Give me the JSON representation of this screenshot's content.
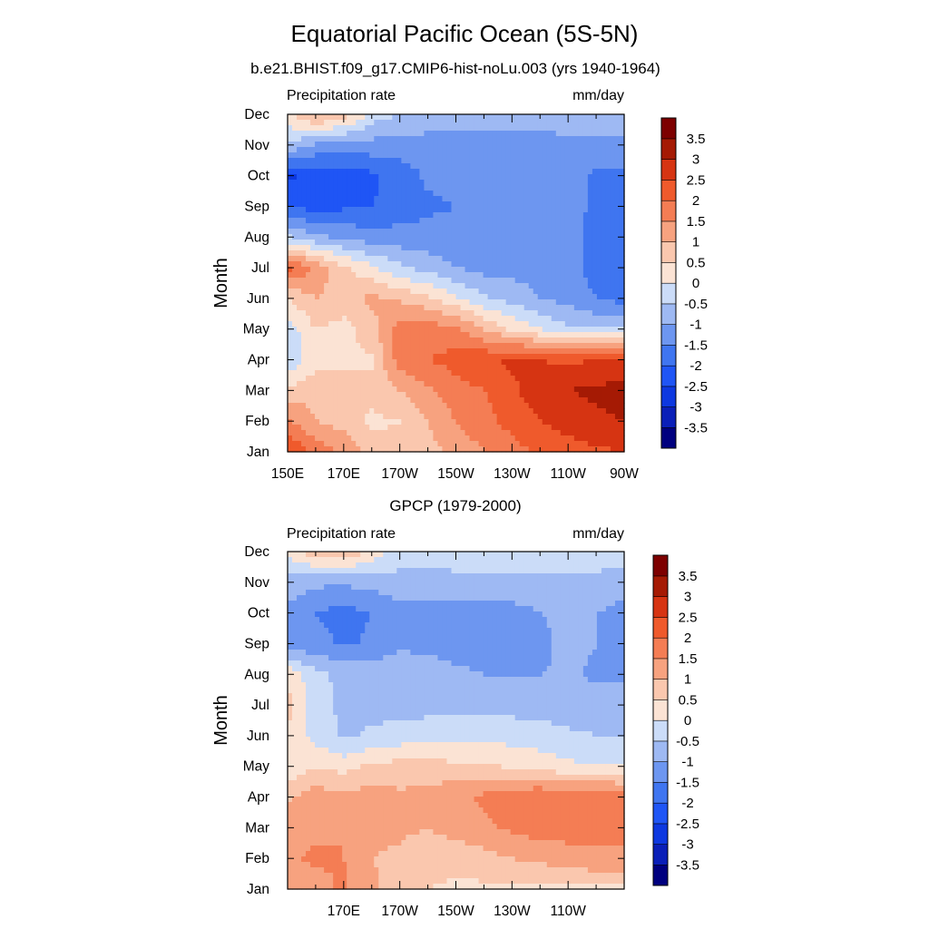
{
  "title": "Equatorial Pacific Ocean (5S-5N)",
  "colorbar": {
    "levels": [
      -3.5,
      -3,
      -2.5,
      -2,
      -1.5,
      -1,
      -0.5,
      0,
      0.5,
      1,
      1.5,
      2,
      2.5,
      3,
      3.5
    ],
    "labels": [
      "-3.5",
      "-3",
      "-2.5",
      "-2",
      "-1.5",
      "-1",
      "-0.5",
      "0",
      "0.5",
      "1",
      "1.5",
      "2",
      "2.5",
      "3",
      "3.5"
    ],
    "colors": [
      "#00007f",
      "#0a1fb8",
      "#0d38e0",
      "#1f55f5",
      "#3f75f0",
      "#6d96f0",
      "#9eb9f3",
      "#cbdcf8",
      "#fbe3d4",
      "#fac7ae",
      "#f7a27f",
      "#f47d54",
      "#ef5a2c",
      "#d63412",
      "#a51a04",
      "#7d0000"
    ]
  },
  "chart_data": [
    {
      "type": "heatmap",
      "title": "b.e21.BHIST.f09_g17.CMIP6-hist-noLu.003 (yrs 1940-1964)",
      "left_label": "Precipitation rate",
      "right_label": "mm/day",
      "ylabel": "Month",
      "xlabel": "",
      "x_ticks": [
        "150E",
        "170E",
        "170W",
        "150W",
        "130W",
        "110W",
        "90W"
      ],
      "y_ticks": [
        "Jan",
        "Feb",
        "Mar",
        "Apr",
        "May",
        "Jun",
        "Jul",
        "Aug",
        "Sep",
        "Oct",
        "Nov",
        "Dec"
      ],
      "x": [
        150,
        160,
        170,
        180,
        190,
        200,
        210,
        220,
        230,
        240,
        250,
        260,
        270
      ],
      "y": [
        "Jan",
        "Feb",
        "Mar",
        "Apr",
        "May",
        "Jun",
        "Jul",
        "Aug",
        "Sep",
        "Oct",
        "Nov",
        "Dec"
      ],
      "z": [
        [
          2.6,
          1.8,
          1.4,
          0.8,
          0.6,
          0.8,
          1.2,
          1.5,
          1.8,
          2.1,
          2.3,
          2.4,
          2.5
        ],
        [
          1.6,
          1.0,
          0.8,
          0.4,
          0.5,
          1.0,
          1.5,
          1.8,
          2.2,
          2.5,
          2.7,
          2.9,
          3.0
        ],
        [
          0.6,
          0.9,
          0.5,
          0.7,
          1.0,
          1.4,
          1.8,
          2.0,
          2.4,
          2.8,
          3.0,
          3.1,
          3.2
        ],
        [
          -0.4,
          0.3,
          0.5,
          0.4,
          1.8,
          2.0,
          2.2,
          2.4,
          2.6,
          2.5,
          2.4,
          2.5,
          2.6
        ],
        [
          -0.3,
          0.5,
          0.3,
          0.8,
          1.8,
          1.8,
          1.6,
          1.0,
          0.4,
          0.0,
          -0.4,
          -0.5,
          -0.5
        ],
        [
          0.5,
          1.0,
          0.8,
          1.1,
          0.9,
          0.6,
          0.1,
          -0.4,
          -0.7,
          -1.0,
          -1.2,
          -1.5,
          -1.7
        ],
        [
          2.2,
          1.4,
          0.6,
          0.1,
          -0.4,
          -0.7,
          -1.0,
          -1.2,
          -1.2,
          -1.2,
          -1.3,
          -1.7,
          -1.9
        ],
        [
          -0.4,
          -0.9,
          -1.1,
          -1.3,
          -1.3,
          -1.3,
          -1.3,
          -1.3,
          -1.2,
          -1.2,
          -1.3,
          -1.7,
          -1.8
        ],
        [
          -2.0,
          -2.2,
          -2.1,
          -2.0,
          -1.8,
          -1.6,
          -1.5,
          -1.3,
          -1.2,
          -1.2,
          -1.3,
          -1.6,
          -1.7
        ],
        [
          -2.6,
          -2.3,
          -2.3,
          -2.1,
          -1.8,
          -1.4,
          -1.3,
          -1.2,
          -1.2,
          -1.4,
          -1.2,
          -1.6,
          -1.6
        ],
        [
          -0.6,
          -1.1,
          -1.2,
          -1.2,
          -1.2,
          -1.2,
          -1.2,
          -1.2,
          -1.2,
          -1.2,
          -1.2,
          -1.2,
          -1.2
        ],
        [
          0.4,
          1.2,
          0.8,
          -0.2,
          -0.5,
          -0.7,
          -0.8,
          -0.8,
          -0.8,
          -0.8,
          -0.6,
          -0.6,
          -0.5
        ]
      ]
    },
    {
      "type": "heatmap",
      "title": "GPCP (1979-2000)",
      "left_label": "Precipitation rate",
      "right_label": "mm/day",
      "ylabel": "Month",
      "xlabel": "",
      "x_ticks": [
        "170E",
        "170W",
        "150W",
        "130W",
        "110W"
      ],
      "y_ticks": [
        "Jan",
        "Feb",
        "Mar",
        "Apr",
        "May",
        "Jun",
        "Jul",
        "Aug",
        "Sep",
        "Oct",
        "Nov",
        "Dec"
      ],
      "x": [
        150,
        160,
        170,
        180,
        190,
        200,
        210,
        220,
        230,
        240,
        250,
        260,
        270
      ],
      "y": [
        "Jan",
        "Feb",
        "Mar",
        "Apr",
        "May",
        "Jun",
        "Jul",
        "Aug",
        "Sep",
        "Oct",
        "Nov",
        "Dec"
      ],
      "z": [
        [
          1.2,
          1.3,
          1.6,
          1.1,
          0.7,
          0.5,
          0.4,
          0.4,
          0.4,
          0.4,
          0.4,
          0.4,
          0.4
        ],
        [
          1.4,
          1.6,
          1.5,
          1.0,
          0.9,
          0.7,
          0.7,
          0.8,
          1.0,
          1.1,
          1.3,
          1.4,
          1.5
        ],
        [
          1.3,
          1.4,
          1.5,
          1.1,
          1.1,
          1.0,
          1.2,
          1.4,
          1.6,
          1.8,
          1.7,
          1.7,
          1.5
        ],
        [
          0.9,
          1.3,
          1.1,
          1.3,
          1.1,
          1.2,
          1.4,
          1.6,
          1.8,
          2.0,
          1.8,
          2.0,
          1.8
        ],
        [
          0.1,
          0.5,
          0.3,
          0.6,
          0.7,
          0.7,
          0.6,
          0.6,
          0.4,
          0.3,
          0.1,
          0.0,
          0.0
        ],
        [
          0.4,
          -0.2,
          -0.6,
          -0.4,
          -0.3,
          -0.2,
          -0.1,
          -0.1,
          -0.2,
          -0.3,
          -0.4,
          -0.5,
          -0.5
        ],
        [
          0.7,
          -0.3,
          -0.6,
          -0.7,
          -0.7,
          -0.7,
          -0.7,
          -0.7,
          -0.7,
          -0.7,
          -0.8,
          -0.8,
          -0.8
        ],
        [
          0.4,
          -0.4,
          -0.6,
          -0.7,
          -0.7,
          -0.8,
          -0.9,
          -1.0,
          -1.0,
          -1.0,
          -0.9,
          -1.1,
          -1.1
        ],
        [
          -1.4,
          -1.3,
          -1.6,
          -1.4,
          -1.1,
          -1.1,
          -1.2,
          -1.2,
          -1.2,
          -1.2,
          -0.8,
          -1.0,
          -1.1
        ],
        [
          -1.1,
          -1.5,
          -1.7,
          -1.5,
          -1.2,
          -1.2,
          -1.2,
          -1.2,
          -1.2,
          -1.0,
          -0.8,
          -1.0,
          -1.2
        ],
        [
          -0.7,
          -0.9,
          -0.9,
          -0.8,
          -0.7,
          -0.7,
          -0.6,
          -0.6,
          -0.6,
          -0.6,
          -0.6,
          -0.6,
          -0.7
        ],
        [
          0.2,
          0.8,
          1.0,
          0.3,
          -0.2,
          -0.3,
          -0.3,
          -0.3,
          -0.2,
          -0.2,
          -0.3,
          -0.3,
          -0.3
        ]
      ]
    }
  ]
}
